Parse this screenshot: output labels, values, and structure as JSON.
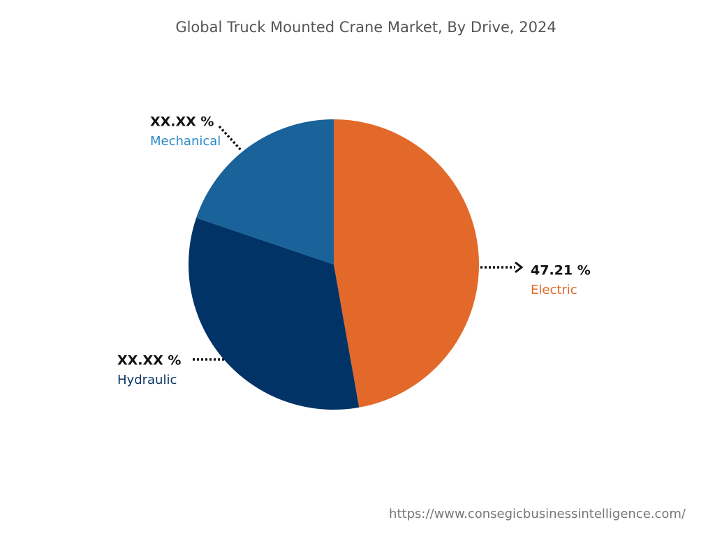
{
  "chart_data": {
    "type": "pie",
    "title": "Global Truck Mounted Crane Market, By Drive, 2024",
    "categories": [
      "Electric",
      "Hydraulic",
      "Mechanical"
    ],
    "values": [
      47.21,
      33.0,
      19.79
    ],
    "value_labels": [
      "47.21 %",
      "XX.XX %",
      "XX.XX %"
    ],
    "colors": [
      "#e3692a",
      "#023366",
      "#19629a"
    ]
  },
  "footer_url": "https://www.consegicbusinessintelligence.com/"
}
